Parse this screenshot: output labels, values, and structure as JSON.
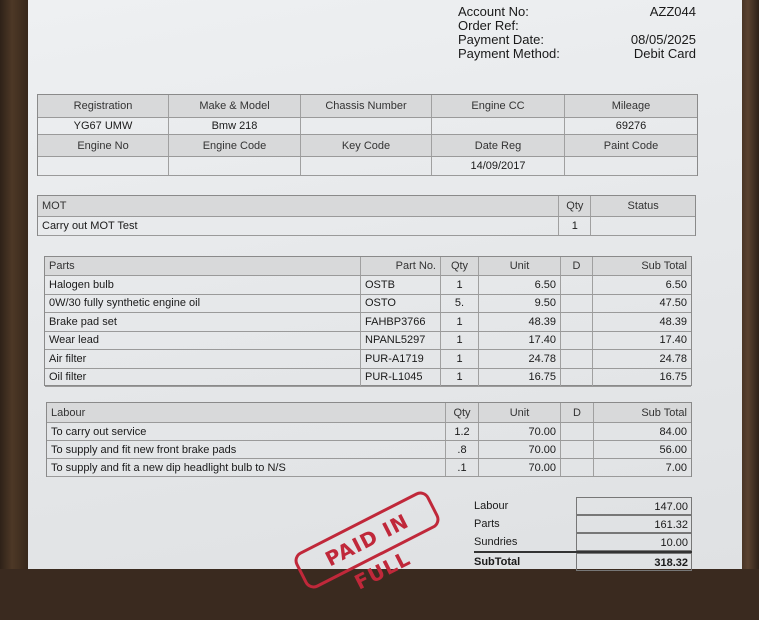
{
  "header": {
    "fields": [
      {
        "label": "Account No:",
        "value": "AZZ044"
      },
      {
        "label": "Order Ref:",
        "value": ""
      },
      {
        "label": "Payment Date:",
        "value": "08/05/2025"
      },
      {
        "label": "Payment Method:",
        "value": "Debit Card"
      }
    ]
  },
  "vehicle": {
    "row1_headers": [
      "Registration",
      "Make & Model",
      "Chassis Number",
      "Engine CC",
      "Mileage"
    ],
    "row1_values": [
      "YG67 UMW",
      "Bmw 218",
      "",
      "",
      "69276"
    ],
    "row2_headers": [
      "Engine No",
      "Engine Code",
      "Key Code",
      "Date Reg",
      "Paint Code"
    ],
    "row2_values": [
      "",
      "",
      "",
      "14/09/2017",
      ""
    ]
  },
  "mot": {
    "headers": [
      "MOT",
      "Qty",
      "Status"
    ],
    "rows": [
      [
        "Carry out MOT Test",
        "1",
        ""
      ]
    ]
  },
  "parts": {
    "headers": [
      "Parts",
      "Part No.",
      "Qty",
      "Unit",
      "D",
      "Sub Total"
    ],
    "rows": [
      [
        "Halogen bulb",
        "OSTB",
        "1",
        "6.50",
        "",
        "6.50"
      ],
      [
        "0W/30 fully synthetic engine oil",
        "OSTO",
        "5.",
        "9.50",
        "",
        "47.50"
      ],
      [
        "Brake pad set",
        "FAHBP3766",
        "1",
        "48.39",
        "",
        "48.39"
      ],
      [
        "Wear lead",
        "NPANL5297",
        "1",
        "17.40",
        "",
        "17.40"
      ],
      [
        "Air filter",
        "PUR-A1719",
        "1",
        "24.78",
        "",
        "24.78"
      ],
      [
        "Oil filter",
        "PUR-L1045",
        "1",
        "16.75",
        "",
        "16.75"
      ]
    ]
  },
  "labour": {
    "headers": [
      "Labour",
      "Qty",
      "Unit",
      "D",
      "Sub Total"
    ],
    "rows": [
      [
        "To carry out service",
        "1.2",
        "70.00",
        "",
        "84.00"
      ],
      [
        "To supply and fit new front brake pads",
        ".8",
        "70.00",
        "",
        "56.00"
      ],
      [
        "To supply and fit a new dip headlight bulb to N/S",
        ".1",
        "70.00",
        "",
        "7.00"
      ]
    ]
  },
  "totals": [
    {
      "label": "Labour",
      "value": "147.00"
    },
    {
      "label": "Parts",
      "value": "161.32"
    },
    {
      "label": "Sundries",
      "value": "10.00"
    },
    {
      "label": "SubTotal",
      "value": "318.32"
    }
  ],
  "stamp": {
    "text": "PAID IN FULL",
    "color": "#c0283a"
  }
}
